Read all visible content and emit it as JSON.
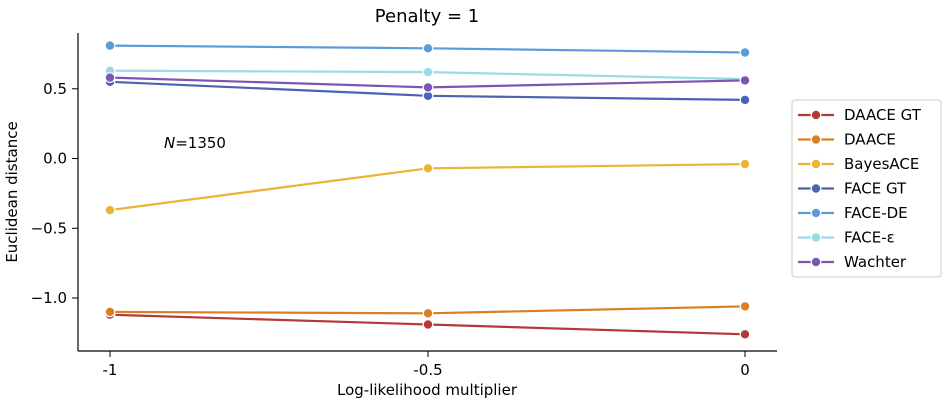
{
  "chart_data": {
    "type": "line",
    "title": "Penalty = 1",
    "xlabel": "Log-likelihood multiplier",
    "ylabel": "Euclidean distance",
    "categories": [
      "-1",
      "-0.5",
      "0"
    ],
    "y_ticks": [
      "−1.0",
      "−0.5",
      "0.0",
      "0.5"
    ],
    "y_tick_values": [
      -1.0,
      -0.5,
      0.0,
      0.5
    ],
    "ylim": [
      -1.38,
      0.9
    ],
    "annotation": {
      "italic": "N",
      "text": "=1350"
    },
    "legend_position": "right",
    "grid": false,
    "series": [
      {
        "name": "DAACE GT",
        "color": "#b33a3a",
        "values": [
          -1.12,
          -1.19,
          -1.26
        ]
      },
      {
        "name": "DAACE",
        "color": "#d97f26",
        "values": [
          -1.1,
          -1.11,
          -1.06
        ]
      },
      {
        "name": "BayesACE",
        "color": "#ebb434",
        "values": [
          -0.37,
          -0.07,
          -0.04
        ]
      },
      {
        "name": "FACE GT",
        "color": "#4a64b3",
        "values": [
          0.55,
          0.45,
          0.42
        ]
      },
      {
        "name": "FACE-DE",
        "color": "#5b9bd9",
        "values": [
          0.81,
          0.79,
          0.76
        ]
      },
      {
        "name": "FACE-ε",
        "color": "#99dbe6",
        "values": [
          0.63,
          0.62,
          0.57
        ]
      },
      {
        "name": "Wachter",
        "color": "#7b57b3",
        "values": [
          0.58,
          0.51,
          0.56
        ]
      }
    ]
  }
}
